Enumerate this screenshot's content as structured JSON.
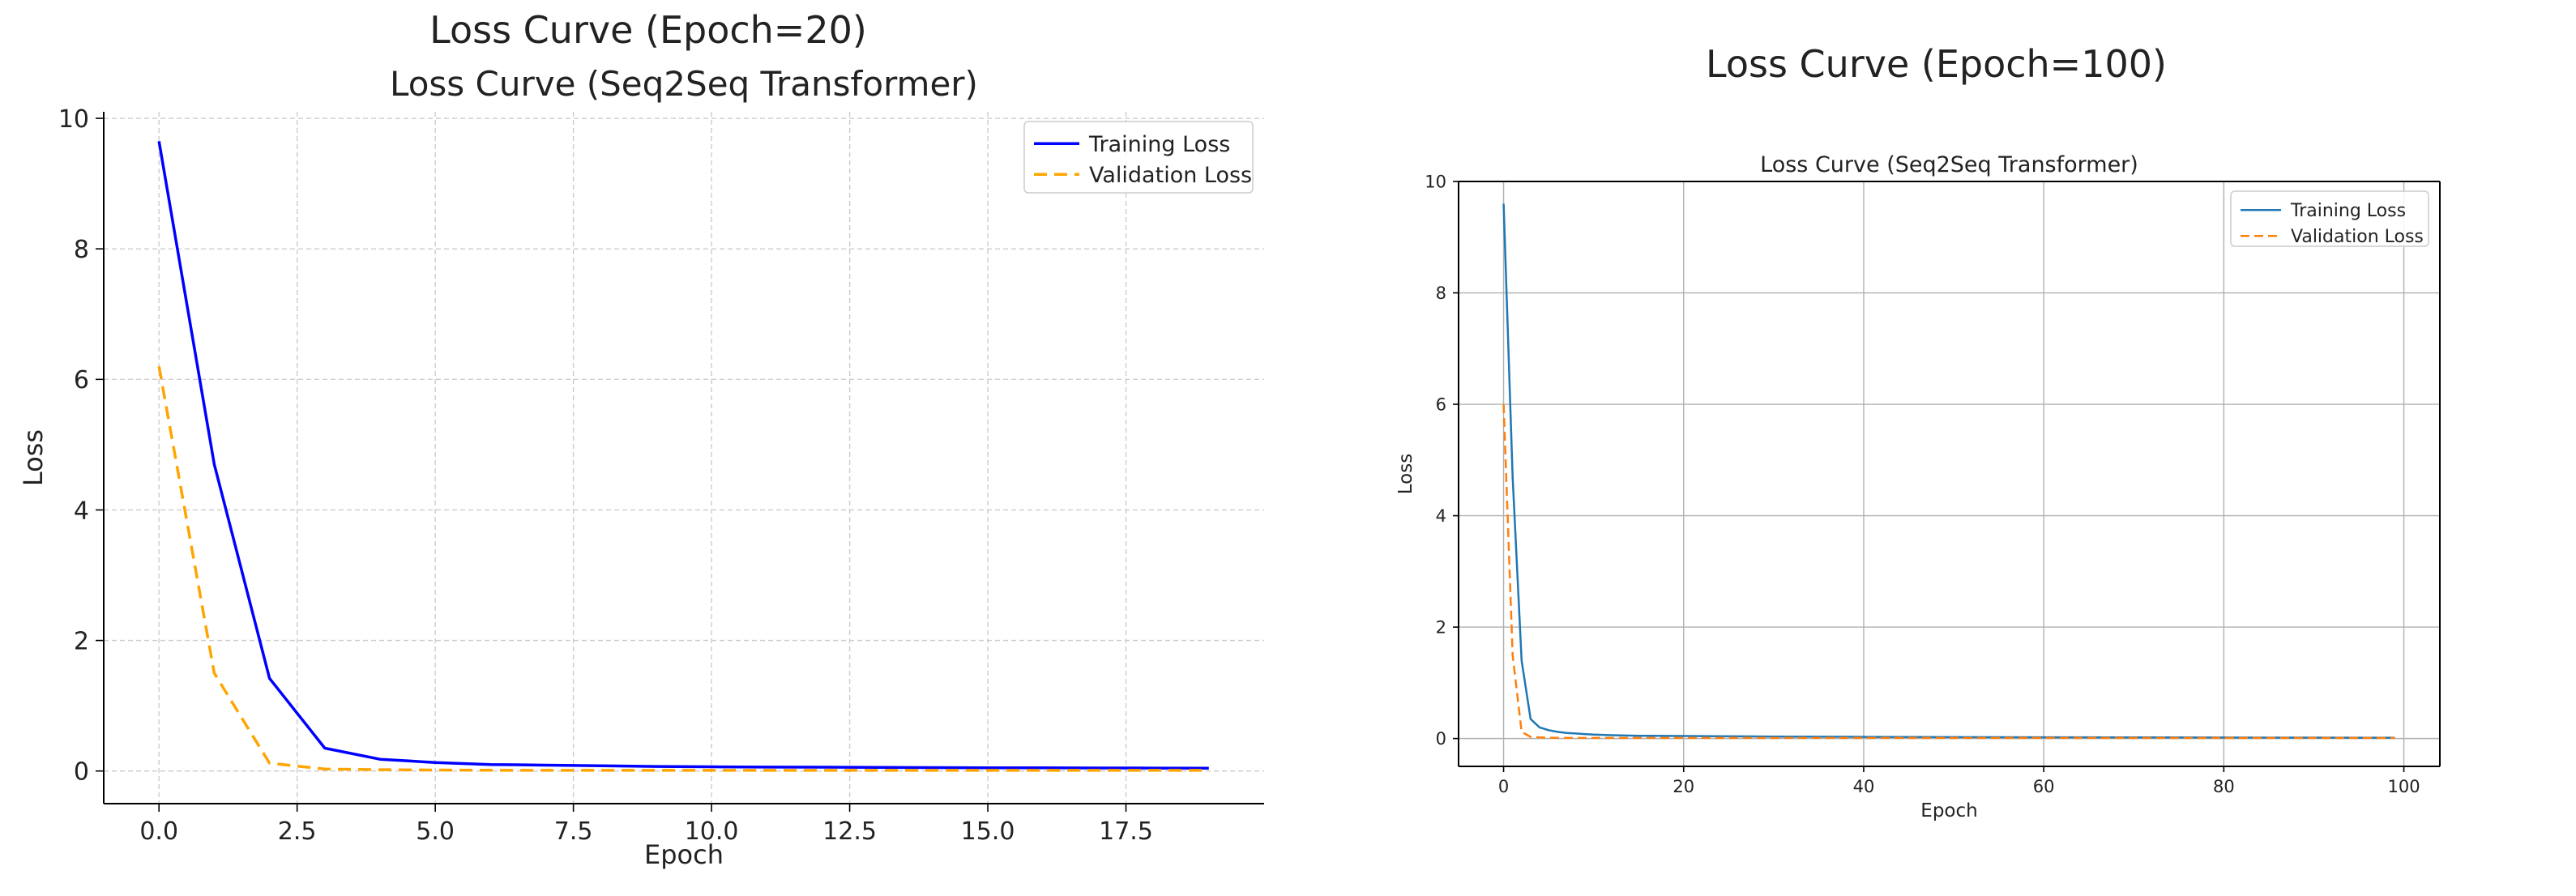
{
  "figure": {
    "left_title": "Loss Curve (Epoch=20)",
    "right_title": "Loss Curve (Epoch=100)"
  },
  "chart_data": [
    {
      "type": "line",
      "title": "Loss Curve (Seq2Seq Transformer)",
      "xlabel": "Epoch",
      "ylabel": "Loss",
      "xlim": [
        -1,
        20
      ],
      "ylim": [
        -0.5,
        10.1
      ],
      "xticks": [
        0.0,
        2.5,
        5.0,
        7.5,
        10.0,
        12.5,
        15.0,
        17.5
      ],
      "xtick_labels": [
        "0.0",
        "2.5",
        "5.0",
        "7.5",
        "10.0",
        "12.5",
        "15.0",
        "17.5"
      ],
      "yticks": [
        0,
        2,
        4,
        6,
        8,
        10
      ],
      "ytick_labels": [
        "0",
        "2",
        "4",
        "6",
        "8",
        "10"
      ],
      "grid": true,
      "grid_style": "dashed",
      "legend_position": "top-right",
      "x": [
        0,
        1,
        2,
        3,
        4,
        5,
        6,
        7,
        8,
        9,
        10,
        11,
        12,
        13,
        14,
        15,
        16,
        17,
        18,
        19
      ],
      "series": [
        {
          "name": "Training Loss",
          "color": "#0000ff",
          "dash": "solid",
          "values": [
            9.65,
            4.7,
            1.42,
            0.35,
            0.18,
            0.13,
            0.1,
            0.09,
            0.08,
            0.07,
            0.065,
            0.06,
            0.058,
            0.055,
            0.052,
            0.05,
            0.048,
            0.046,
            0.045,
            0.044
          ]
        },
        {
          "name": "Validation Loss",
          "color": "#ffa500",
          "dash": "dashed",
          "values": [
            6.2,
            1.5,
            0.12,
            0.03,
            0.02,
            0.015,
            0.012,
            0.01,
            0.01,
            0.01,
            0.01,
            0.01,
            0.01,
            0.01,
            0.01,
            0.01,
            0.01,
            0.01,
            0.01,
            0.01
          ]
        }
      ]
    },
    {
      "type": "line",
      "title": "Loss Curve (Seq2Seq Transformer)",
      "xlabel": "Epoch",
      "ylabel": "Loss",
      "xlim": [
        -5,
        104
      ],
      "ylim": [
        -0.5,
        10.0
      ],
      "xticks": [
        0,
        20,
        40,
        60,
        80,
        100
      ],
      "xtick_labels": [
        "0",
        "20",
        "40",
        "60",
        "80",
        "100"
      ],
      "yticks": [
        0,
        2,
        4,
        6,
        8,
        10
      ],
      "ytick_labels": [
        "0",
        "2",
        "4",
        "6",
        "8",
        "10"
      ],
      "grid": true,
      "grid_style": "solid",
      "legend_position": "top-right",
      "x": [
        0,
        1,
        2,
        3,
        4,
        5,
        6,
        7,
        8,
        9,
        10,
        12,
        15,
        20,
        25,
        30,
        40,
        50,
        60,
        70,
        80,
        90,
        99
      ],
      "series": [
        {
          "name": "Training Loss",
          "color": "#1f77b4",
          "dash": "solid",
          "values": [
            9.6,
            4.7,
            1.4,
            0.35,
            0.2,
            0.15,
            0.12,
            0.1,
            0.09,
            0.08,
            0.07,
            0.06,
            0.05,
            0.045,
            0.04,
            0.035,
            0.03,
            0.025,
            0.022,
            0.02,
            0.018,
            0.016,
            0.015
          ]
        },
        {
          "name": "Validation Loss",
          "color": "#ff7f0e",
          "dash": "dashed",
          "values": [
            6.0,
            1.5,
            0.12,
            0.03,
            0.02,
            0.015,
            0.012,
            0.01,
            0.01,
            0.01,
            0.01,
            0.01,
            0.01,
            0.01,
            0.01,
            0.01,
            0.01,
            0.01,
            0.01,
            0.01,
            0.01,
            0.01,
            0.01
          ]
        }
      ]
    }
  ]
}
